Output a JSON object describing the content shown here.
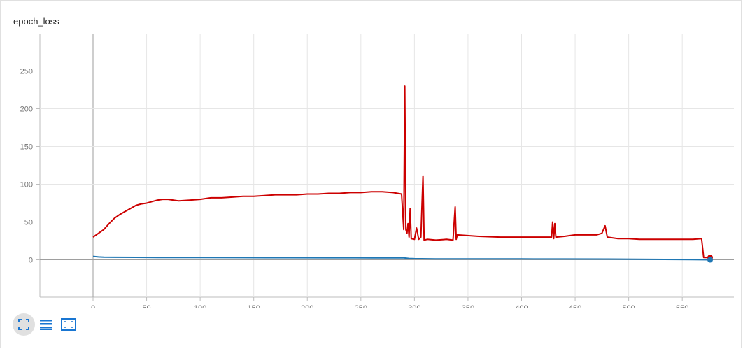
{
  "card": {
    "title": "epoch_loss"
  },
  "chart_data": {
    "type": "line",
    "title": "epoch_loss",
    "xlabel": "",
    "ylabel": "",
    "xlim": [
      -50,
      597
    ],
    "ylim": [
      -50,
      295
    ],
    "x_ticks": [
      0,
      50,
      100,
      150,
      200,
      250,
      300,
      350,
      400,
      450,
      500,
      550
    ],
    "y_ticks": [
      0,
      50,
      100,
      150,
      200,
      250
    ],
    "grid": true,
    "legend": "none",
    "series": [
      {
        "color": "#cc0000",
        "points": [
          [
            0,
            30
          ],
          [
            5,
            35
          ],
          [
            10,
            40
          ],
          [
            15,
            48
          ],
          [
            20,
            55
          ],
          [
            25,
            60
          ],
          [
            30,
            64
          ],
          [
            35,
            68
          ],
          [
            40,
            72
          ],
          [
            45,
            74
          ],
          [
            50,
            75
          ],
          [
            55,
            77
          ],
          [
            60,
            79
          ],
          [
            65,
            80
          ],
          [
            70,
            80
          ],
          [
            80,
            78
          ],
          [
            90,
            79
          ],
          [
            100,
            80
          ],
          [
            110,
            82
          ],
          [
            120,
            82
          ],
          [
            130,
            83
          ],
          [
            140,
            84
          ],
          [
            150,
            84
          ],
          [
            160,
            85
          ],
          [
            170,
            86
          ],
          [
            180,
            86
          ],
          [
            190,
            86
          ],
          [
            200,
            87
          ],
          [
            210,
            87
          ],
          [
            220,
            88
          ],
          [
            230,
            88
          ],
          [
            240,
            89
          ],
          [
            250,
            89
          ],
          [
            260,
            90
          ],
          [
            270,
            90
          ],
          [
            280,
            89
          ],
          [
            288,
            87
          ],
          [
            290,
            40
          ],
          [
            291,
            230
          ],
          [
            292,
            40
          ],
          [
            293,
            35
          ],
          [
            294,
            48
          ],
          [
            295,
            30
          ],
          [
            296,
            68
          ],
          [
            297,
            28
          ],
          [
            300,
            27
          ],
          [
            302,
            42
          ],
          [
            304,
            27
          ],
          [
            306,
            30
          ],
          [
            308,
            111
          ],
          [
            309,
            26
          ],
          [
            312,
            27
          ],
          [
            320,
            26
          ],
          [
            330,
            27
          ],
          [
            336,
            26
          ],
          [
            338,
            70
          ],
          [
            339,
            27
          ],
          [
            340,
            33
          ],
          [
            360,
            31
          ],
          [
            380,
            30
          ],
          [
            400,
            30
          ],
          [
            420,
            30
          ],
          [
            428,
            30
          ],
          [
            429,
            50
          ],
          [
            430,
            28
          ],
          [
            431,
            48
          ],
          [
            432,
            30
          ],
          [
            440,
            31
          ],
          [
            450,
            33
          ],
          [
            460,
            33
          ],
          [
            470,
            33
          ],
          [
            475,
            35
          ],
          [
            478,
            45
          ],
          [
            480,
            30
          ],
          [
            490,
            28
          ],
          [
            500,
            28
          ],
          [
            510,
            27
          ],
          [
            520,
            27
          ],
          [
            530,
            27
          ],
          [
            540,
            27
          ],
          [
            550,
            27
          ],
          [
            560,
            27
          ],
          [
            568,
            28
          ],
          [
            570,
            3
          ],
          [
            576,
            3
          ]
        ]
      },
      {
        "color": "#1f77b4",
        "points": [
          [
            0,
            4.5
          ],
          [
            5,
            3.8
          ],
          [
            10,
            3.5
          ],
          [
            20,
            3.3
          ],
          [
            40,
            3.2
          ],
          [
            60,
            3.1
          ],
          [
            80,
            3
          ],
          [
            100,
            3
          ],
          [
            140,
            2.9
          ],
          [
            180,
            2.8
          ],
          [
            220,
            2.7
          ],
          [
            260,
            2.6
          ],
          [
            290,
            2.5
          ],
          [
            295,
            1.8
          ],
          [
            300,
            1.5
          ],
          [
            320,
            1.2
          ],
          [
            360,
            1.1
          ],
          [
            400,
            1.1
          ],
          [
            440,
            1.0
          ],
          [
            480,
            0.9
          ],
          [
            520,
            0.6
          ],
          [
            560,
            0.3
          ],
          [
            576,
            0
          ]
        ]
      }
    ]
  },
  "toolbar": {
    "buttons": [
      {
        "name": "fit-domain-button",
        "icon": "fit-to-data-icon"
      },
      {
        "name": "toggle-log-button",
        "icon": "list-lines-icon"
      },
      {
        "name": "expand-chart-button",
        "icon": "expand-frame-icon"
      }
    ]
  }
}
